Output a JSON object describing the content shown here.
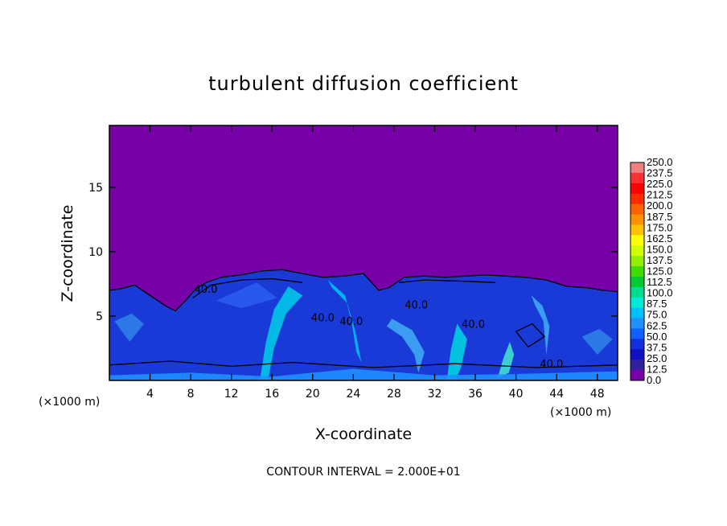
{
  "chart_data": {
    "type": "heatmap",
    "title": "turbulent diffusion coefficient",
    "xlabel": "X-coordinate",
    "ylabel": "Z-coordinate",
    "x_unit_label": "(×1000 m)",
    "xlim": [
      0,
      50
    ],
    "ylim": [
      0,
      19.8
    ],
    "x_ticks": [
      "4",
      "8",
      "12",
      "16",
      "20",
      "24",
      "28",
      "32",
      "36",
      "40",
      "44",
      "48"
    ],
    "x_tick_values": [
      4,
      8,
      12,
      16,
      20,
      24,
      28,
      32,
      36,
      40,
      44,
      48
    ],
    "y_ticks": [
      "5",
      "10",
      "15"
    ],
    "y_tick_values": [
      5,
      10,
      15
    ],
    "footer": "CONTOUR INTERVAL = 2.000E+01",
    "contour_labels": [
      {
        "text": "40.0",
        "x": 9.5,
        "z": 6.8
      },
      {
        "text": "40.0",
        "x": 30.2,
        "z": 5.6
      },
      {
        "text": "40.0",
        "x": 21.0,
        "z": 4.6
      },
      {
        "text": "40.0",
        "x": 23.8,
        "z": 4.3
      },
      {
        "text": "40.0",
        "x": 35.8,
        "z": 4.1
      },
      {
        "text": "40.0",
        "x": 43.5,
        "z": 1.0
      }
    ],
    "colorbar": {
      "levels": [
        "250.0",
        "237.5",
        "225.0",
        "212.5",
        "200.0",
        "187.5",
        "175.0",
        "162.5",
        "150.0",
        "137.5",
        "125.0",
        "112.5",
        "100.0",
        "87.5",
        "75.0",
        "62.5",
        "50.0",
        "37.5",
        "25.0",
        "12.5",
        "0.0"
      ],
      "colors": [
        "#f08080",
        "#ff3030",
        "#ff0000",
        "#ff2a00",
        "#ff6000",
        "#ff9000",
        "#ffc000",
        "#ffff00",
        "#d0ff00",
        "#90ee00",
        "#40dd00",
        "#00cc30",
        "#00dd90",
        "#00e8d8",
        "#00bfff",
        "#1e90ff",
        "#1060ff",
        "#1030e0",
        "#1010c0",
        "#3020a0",
        "#7a00aa"
      ]
    },
    "colors": {
      "background_field": "#7800a8",
      "boundary_layer": "#1a3ad8",
      "high_values": "#00d8d8"
    }
  }
}
